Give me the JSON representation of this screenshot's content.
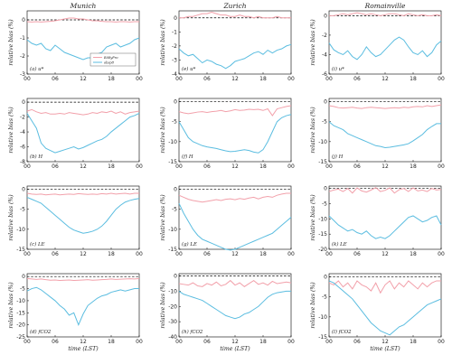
{
  "colors": {
    "ec": "#f2a0aa",
    "obs": "#5bbde0",
    "zero": "#000000"
  },
  "chart_data": [
    {
      "type": "line",
      "col": 0,
      "row": 0,
      "title": "Munich",
      "label": "(a) u*",
      "ylabel": "relative bias (%)",
      "xlabel": "",
      "ylim": [
        -3,
        0.5
      ],
      "yticks": [
        -3,
        -2,
        -1,
        0
      ],
      "xticks": [
        "00",
        "06",
        "12",
        "18",
        "00"
      ],
      "legend": {
        "position": "inside-bottom-right",
        "entries": [
          "EddyPro",
          "obsp8"
        ]
      },
      "series": [
        {
          "name": "EddyPro",
          "values": [
            -0.1,
            -0.12,
            -0.1,
            -0.12,
            -0.1,
            -0.08,
            -0.05,
            0.0,
            0.05,
            0.1,
            0.1,
            0.05,
            0.05,
            0.0,
            -0.05,
            -0.05,
            -0.08,
            -0.1,
            -0.1,
            -0.12,
            -0.1,
            -0.1,
            -0.12,
            -0.1,
            -0.1
          ]
        },
        {
          "name": "obsp8",
          "values": [
            -1.1,
            -1.3,
            -1.4,
            -1.3,
            -1.6,
            -1.7,
            -1.4,
            -1.6,
            -1.8,
            -1.9,
            -2.0,
            -2.1,
            -2.2,
            -2.1,
            -2.1,
            -1.9,
            -1.8,
            -1.5,
            -1.4,
            -1.3,
            -1.5,
            -1.4,
            -1.3,
            -1.1,
            -1.0
          ]
        }
      ]
    },
    {
      "type": "line",
      "col": 1,
      "row": 0,
      "title": "Zurich",
      "label": "(e) u*",
      "ylabel": "relative bias (%)",
      "xlabel": "",
      "ylim": [
        -4,
        0.5
      ],
      "yticks": [
        -4,
        -3,
        -2,
        -1,
        0
      ],
      "xticks": [
        "00",
        "06",
        "12",
        "18",
        "00"
      ],
      "series": [
        {
          "name": "",
          "values": [
            0.0,
            0.0,
            0.1,
            0.1,
            0.2,
            0.3,
            0.3,
            0.4,
            0.3,
            0.2,
            0.2,
            0.1,
            0.1,
            0.2,
            0.1,
            0.1,
            0.0,
            0.1,
            0.0,
            0.0,
            0.0,
            0.1,
            0.0,
            0.0,
            0.0
          ]
        },
        {
          "name": "",
          "values": [
            -2.2,
            -2.5,
            -2.7,
            -2.6,
            -2.9,
            -3.2,
            -3.0,
            -3.1,
            -3.3,
            -3.4,
            -3.6,
            -3.4,
            -3.1,
            -3.0,
            -2.9,
            -2.7,
            -2.5,
            -2.4,
            -2.6,
            -2.3,
            -2.5,
            -2.3,
            -2.2,
            -2.0,
            -1.9
          ]
        }
      ]
    },
    {
      "type": "line",
      "col": 2,
      "row": 0,
      "title": "Romainville",
      "label": "(i) u*",
      "ylabel": "relative bias (%)",
      "xlabel": "",
      "ylim": [
        -6,
        0.5
      ],
      "yticks": [
        -6,
        -4,
        -2,
        0
      ],
      "xticks": [
        "00",
        "06",
        "12",
        "18",
        "00"
      ],
      "series": [
        {
          "name": "",
          "values": [
            0.0,
            0.0,
            0.1,
            0.2,
            0.1,
            0.2,
            0.3,
            0.2,
            0.1,
            0.2,
            0.1,
            0.0,
            0.1,
            0.2,
            0.2,
            0.1,
            0.0,
            0.2,
            0.1,
            0.0,
            0.1,
            0.0,
            0.0,
            0.1,
            0.0
          ]
        },
        {
          "name": "",
          "values": [
            -2.8,
            -3.5,
            -3.8,
            -4.0,
            -3.6,
            -4.2,
            -4.5,
            -4.0,
            -3.2,
            -3.8,
            -4.2,
            -4.0,
            -3.5,
            -3.0,
            -2.5,
            -2.2,
            -2.5,
            -3.2,
            -3.8,
            -4.0,
            -3.6,
            -4.2,
            -3.8,
            -3.0,
            -2.6
          ]
        }
      ]
    },
    {
      "type": "line",
      "col": 0,
      "row": 1,
      "title": "",
      "label": "(b) H",
      "ylabel": "relative bias (%)",
      "xlabel": "",
      "ylim": [
        -8,
        0.5
      ],
      "yticks": [
        -8,
        -6,
        -4,
        -2,
        0
      ],
      "xticks": [
        "00",
        "06",
        "12",
        "18",
        "00"
      ],
      "series": [
        {
          "name": "",
          "values": [
            -1.2,
            -1.0,
            -1.3,
            -1.5,
            -1.4,
            -1.6,
            -1.6,
            -1.5,
            -1.6,
            -1.4,
            -1.5,
            -1.6,
            -1.7,
            -1.6,
            -1.4,
            -1.5,
            -1.3,
            -1.4,
            -1.2,
            -1.5,
            -1.3,
            -1.6,
            -1.4,
            -1.3,
            -1.2
          ]
        },
        {
          "name": "",
          "values": [
            -1.5,
            -2.5,
            -3.5,
            -5.5,
            -6.2,
            -6.5,
            -6.8,
            -6.6,
            -6.4,
            -6.2,
            -6.0,
            -6.3,
            -6.1,
            -5.8,
            -5.5,
            -5.2,
            -5.0,
            -4.6,
            -4.0,
            -3.5,
            -3.0,
            -2.5,
            -2.0,
            -1.8,
            -1.5
          ]
        }
      ]
    },
    {
      "type": "line",
      "col": 1,
      "row": 1,
      "title": "",
      "label": "(f) H",
      "ylabel": "relative bias (%)",
      "xlabel": "",
      "ylim": [
        -15,
        0.8
      ],
      "yticks": [
        -15,
        -10,
        -5,
        0
      ],
      "xticks": [
        "00",
        "06",
        "12",
        "18",
        "00"
      ],
      "series": [
        {
          "name": "",
          "values": [
            -2.5,
            -2.8,
            -3.0,
            -2.8,
            -2.6,
            -2.5,
            -2.7,
            -2.5,
            -2.4,
            -2.2,
            -2.5,
            -2.3,
            -2.0,
            -2.2,
            -2.1,
            -1.9,
            -2.0,
            -1.9,
            -2.2,
            -1.8,
            -3.5,
            -1.8,
            -1.5,
            -1.2,
            -1.0
          ]
        },
        {
          "name": "",
          "values": [
            -5.0,
            -7.0,
            -9.0,
            -10.0,
            -10.5,
            -11.0,
            -11.3,
            -11.5,
            -11.7,
            -12.0,
            -12.3,
            -12.5,
            -12.4,
            -12.2,
            -12.0,
            -12.2,
            -12.6,
            -12.8,
            -12.0,
            -10.0,
            -7.5,
            -5.0,
            -4.0,
            -3.5,
            -3.2
          ]
        }
      ]
    },
    {
      "type": "line",
      "col": 2,
      "row": 1,
      "title": "",
      "label": "(j) H",
      "ylabel": "relative bias (%)",
      "xlabel": "",
      "ylim": [
        -15,
        0.8
      ],
      "yticks": [
        -15,
        -10,
        -5,
        0
      ],
      "xticks": [
        "00",
        "06",
        "12",
        "18",
        "00"
      ],
      "series": [
        {
          "name": "",
          "values": [
            -1.0,
            -1.2,
            -1.5,
            -1.6,
            -1.5,
            -1.4,
            -1.6,
            -1.7,
            -1.5,
            -1.4,
            -1.5,
            -1.6,
            -1.7,
            -1.6,
            -1.5,
            -1.6,
            -1.4,
            -1.5,
            -1.3,
            -1.2,
            -1.3,
            -1.0,
            -1.2,
            -1.0,
            -0.8
          ]
        },
        {
          "name": "",
          "values": [
            -5.0,
            -6.0,
            -6.5,
            -7.0,
            -8.0,
            -8.5,
            -9.0,
            -9.5,
            -10.0,
            -10.5,
            -11.0,
            -11.2,
            -11.5,
            -11.4,
            -11.2,
            -11.0,
            -10.8,
            -10.5,
            -9.8,
            -9.0,
            -8.2,
            -7.0,
            -6.2,
            -5.5,
            -5.5
          ]
        }
      ]
    },
    {
      "type": "line",
      "col": 0,
      "row": 2,
      "title": "",
      "label": "(c) LE",
      "ylabel": "relative bias (%)",
      "xlabel": "",
      "ylim": [
        -15,
        0.8
      ],
      "yticks": [
        -15,
        -10,
        -5,
        0
      ],
      "xticks": [
        "00",
        "06",
        "12",
        "18",
        "00"
      ],
      "series": [
        {
          "name": "",
          "values": [
            -1.0,
            -1.2,
            -1.3,
            -1.2,
            -1.4,
            -1.3,
            -1.2,
            -1.4,
            -1.3,
            -1.2,
            -1.3,
            -1.1,
            -1.2,
            -1.3,
            -1.2,
            -1.3,
            -1.1,
            -1.2,
            -1.0,
            -1.2,
            -1.1,
            -1.0,
            -1.2,
            -1.0,
            -1.0
          ]
        },
        {
          "name": "",
          "values": [
            -2.0,
            -2.5,
            -3.0,
            -3.5,
            -4.5,
            -5.5,
            -6.5,
            -7.5,
            -8.5,
            -9.5,
            -10.2,
            -10.6,
            -11.0,
            -10.8,
            -10.5,
            -10.0,
            -9.2,
            -8.0,
            -6.5,
            -5.0,
            -4.0,
            -3.2,
            -2.8,
            -2.5,
            -2.3
          ]
        }
      ]
    },
    {
      "type": "line",
      "col": 1,
      "row": 2,
      "title": "",
      "label": "(g) LE",
      "ylabel": "relative bias (%)",
      "xlabel": "",
      "ylim": [
        -15,
        0.8
      ],
      "yticks": [
        -15,
        -10,
        -5,
        0
      ],
      "xticks": [
        "00",
        "06",
        "12",
        "18",
        "00"
      ],
      "series": [
        {
          "name": "",
          "values": [
            -1.5,
            -2.0,
            -2.5,
            -2.8,
            -3.0,
            -3.2,
            -3.0,
            -2.8,
            -2.6,
            -2.8,
            -2.5,
            -2.4,
            -2.6,
            -2.3,
            -2.5,
            -2.2,
            -2.0,
            -2.4,
            -2.0,
            -1.8,
            -2.0,
            -1.5,
            -1.2,
            -1.0,
            -1.0
          ]
        },
        {
          "name": "",
          "values": [
            -3.5,
            -6.0,
            -8.0,
            -10.0,
            -11.5,
            -12.5,
            -13.0,
            -13.5,
            -14.0,
            -14.5,
            -15.0,
            -15.2,
            -15.0,
            -14.5,
            -14.0,
            -13.5,
            -13.0,
            -12.5,
            -12.0,
            -11.5,
            -11.0,
            -10.0,
            -9.0,
            -8.0,
            -7.0
          ]
        }
      ]
    },
    {
      "type": "line",
      "col": 2,
      "row": 2,
      "title": "",
      "label": "(k) LE",
      "ylabel": "relative bias (%)",
      "xlabel": "",
      "ylim": [
        -20,
        0.8
      ],
      "yticks": [
        -20,
        -15,
        -10,
        -5,
        0
      ],
      "xticks": [
        "00",
        "06",
        "12",
        "18",
        "00"
      ],
      "series": [
        {
          "name": "",
          "values": [
            -1.0,
            -0.5,
            -0.2,
            -1.0,
            0.0,
            -1.5,
            0.2,
            -0.8,
            -1.2,
            -0.5,
            0.3,
            -1.0,
            -0.6,
            0.2,
            -1.5,
            -0.4,
            0.0,
            -1.0,
            0.2,
            -0.8,
            -0.5,
            -1.0,
            0.0,
            -0.5,
            -0.3
          ]
        },
        {
          "name": "",
          "values": [
            -9.0,
            -10.5,
            -12.0,
            -13.0,
            -14.0,
            -13.5,
            -14.5,
            -15.0,
            -14.0,
            -15.5,
            -16.5,
            -16.0,
            -16.5,
            -15.5,
            -14.0,
            -12.5,
            -11.0,
            -9.5,
            -9.0,
            -10.0,
            -11.0,
            -10.5,
            -9.5,
            -9.0,
            -12.0
          ]
        }
      ]
    },
    {
      "type": "line",
      "col": 0,
      "row": 3,
      "title": "",
      "label": "(d) fCO2",
      "ylabel": "relative bias (%)",
      "xlabel": "time (LST)",
      "ylim": [
        -25,
        1.2
      ],
      "yticks": [
        -25,
        -20,
        -15,
        -10,
        -5,
        0
      ],
      "xticks": [
        "00",
        "06",
        "12",
        "18",
        "00"
      ],
      "series": [
        {
          "name": "",
          "values": [
            -0.8,
            -1.0,
            -1.2,
            -1.0,
            -1.3,
            -1.5,
            -1.4,
            -1.6,
            -1.5,
            -1.4,
            -1.6,
            -1.5,
            -1.4,
            -1.3,
            -1.5,
            -1.4,
            -1.3,
            -1.2,
            -1.0,
            -1.2,
            -1.1,
            -1.0,
            -0.9,
            -1.0,
            -0.8
          ]
        },
        {
          "name": "",
          "values": [
            -6.0,
            -5.0,
            -4.5,
            -5.5,
            -7.0,
            -8.5,
            -10.0,
            -12.0,
            -13.5,
            -16.0,
            -15.0,
            -20.0,
            -15.5,
            -12.0,
            -10.5,
            -9.0,
            -8.0,
            -7.5,
            -6.5,
            -6.0,
            -5.5,
            -6.0,
            -5.5,
            -5.0,
            -5.0
          ]
        }
      ]
    },
    {
      "type": "line",
      "col": 1,
      "row": 3,
      "title": "",
      "label": "(h) fCO2",
      "ylabel": "relative bias (%)",
      "xlabel": "time (LST)",
      "ylim": [
        -40,
        1.5
      ],
      "yticks": [
        -40,
        -30,
        -20,
        -10,
        0
      ],
      "xticks": [
        "00",
        "06",
        "12",
        "18",
        "00"
      ],
      "series": [
        {
          "name": "",
          "values": [
            -5.0,
            -5.5,
            -6.0,
            -4.5,
            -6.5,
            -7.0,
            -5.0,
            -6.0,
            -4.0,
            -6.5,
            -5.5,
            -3.0,
            -6.0,
            -4.5,
            -7.0,
            -5.0,
            -3.0,
            -5.5,
            -4.5,
            -6.0,
            -3.5,
            -5.0,
            -4.5,
            -4.0,
            -4.5
          ]
        },
        {
          "name": "",
          "values": [
            -10.0,
            -12.0,
            -13.0,
            -14.0,
            -15.0,
            -16.0,
            -18.0,
            -20.0,
            -22.0,
            -24.0,
            -26.0,
            -27.0,
            -28.0,
            -27.0,
            -25.0,
            -24.0,
            -22.0,
            -20.0,
            -17.0,
            -14.0,
            -12.0,
            -11.0,
            -10.5,
            -10.0,
            -10.0
          ]
        }
      ]
    },
    {
      "type": "line",
      "col": 2,
      "row": 3,
      "title": "",
      "label": "(l) fCO2",
      "ylabel": "relative bias (%)",
      "xlabel": "time (LST)",
      "ylim": [
        -15,
        0.8
      ],
      "yticks": [
        -15,
        -10,
        -5,
        0
      ],
      "xticks": [
        "00",
        "06",
        "12",
        "18",
        "00"
      ],
      "series": [
        {
          "name": "",
          "values": [
            -1.5,
            -2.0,
            -1.0,
            -2.5,
            -1.5,
            -3.0,
            -1.0,
            -2.0,
            -2.5,
            -3.5,
            -1.5,
            -4.0,
            -2.0,
            -1.0,
            -3.0,
            -1.5,
            -2.5,
            -1.0,
            -2.0,
            -3.0,
            -1.5,
            -2.5,
            -1.5,
            -1.0,
            -1.0
          ]
        },
        {
          "name": "",
          "values": [
            -1.0,
            -1.5,
            -2.5,
            -3.5,
            -4.5,
            -5.5,
            -7.0,
            -8.5,
            -10.0,
            -11.5,
            -12.5,
            -13.5,
            -14.0,
            -14.5,
            -13.5,
            -12.5,
            -12.0,
            -11.0,
            -10.0,
            -9.0,
            -8.0,
            -7.0,
            -6.5,
            -6.0,
            -5.5
          ]
        }
      ]
    }
  ]
}
